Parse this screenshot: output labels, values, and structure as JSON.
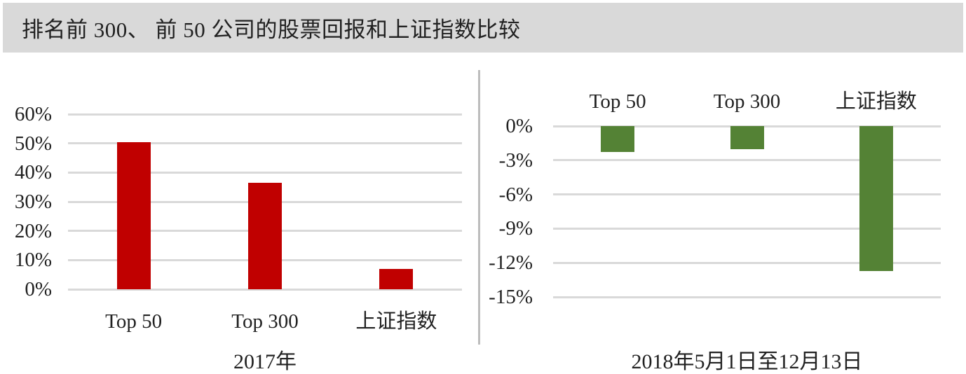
{
  "figure": {
    "title": "排名前 300、 前 50 公司的股票回报和上证指数比较"
  },
  "colors": {
    "banner_bg": "#d9d9d9",
    "text": "#212121",
    "gridline": "#d9d9d9",
    "divider": "#bdbdbd",
    "red_bar": "#c00000",
    "green_bar": "#548235"
  },
  "chart_data": [
    {
      "type": "bar",
      "title": "2017年",
      "categories": [
        "Top 50",
        "Top 300",
        "上证指数"
      ],
      "values": [
        50.3,
        36.5,
        6.9
      ],
      "unit": "%",
      "ylim": [
        0,
        60
      ],
      "yticks": [
        60,
        50,
        40,
        30,
        20,
        10,
        0
      ],
      "ytick_labels": [
        "60%",
        "50%",
        "40%",
        "30%",
        "20%",
        "10%",
        "0%"
      ],
      "bar_color": "#c00000",
      "grid": true,
      "legend": "none",
      "category_label_position": "below"
    },
    {
      "type": "bar",
      "title": "2018年5月1日至12月13日",
      "categories": [
        "Top 50",
        "Top 300",
        "上证指数"
      ],
      "values": [
        -2.3,
        -2.0,
        -12.7
      ],
      "unit": "%",
      "ylim": [
        -15,
        0
      ],
      "yticks": [
        0,
        -3,
        -6,
        -9,
        -12,
        -15
      ],
      "ytick_labels": [
        "0%",
        "-3%",
        "-6%",
        "-9%",
        "-12%",
        "-15%"
      ],
      "bar_color": "#548235",
      "grid": true,
      "legend": "none",
      "category_label_position": "above"
    }
  ]
}
